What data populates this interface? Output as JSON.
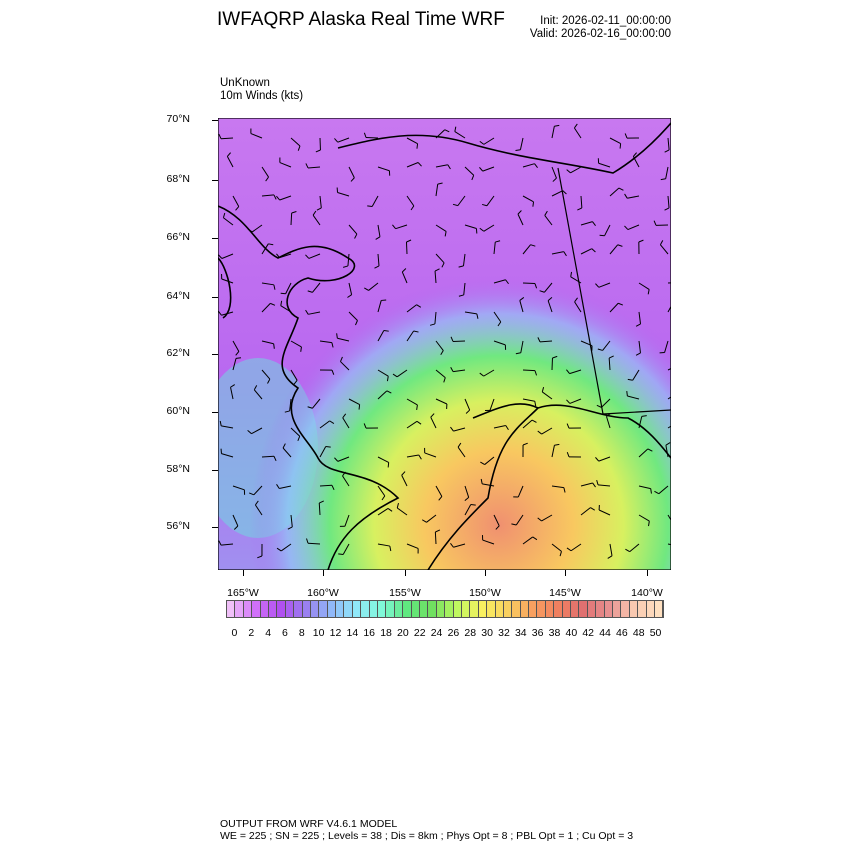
{
  "header": {
    "title": "IWFAQRP Alaska Real Time WRF",
    "init": "Init: 2026-02-11_00:00:00",
    "valid": "Valid: 2026-02-16_00:00:00"
  },
  "subtitle": {
    "line1": "UnKnown",
    "line2": "10m Winds   (kts)"
  },
  "map": {
    "lat_labels": [
      "70°N",
      "68°N",
      "66°N",
      "64°N",
      "62°N",
      "60°N",
      "58°N",
      "56°N"
    ],
    "lon_labels": [
      "165°W",
      "160°W",
      "155°W",
      "150°W",
      "145°W",
      "140°W"
    ],
    "field": "10m wind speed (kts)",
    "overlay": "wind barbs",
    "lat_range": [
      54.5,
      70
    ],
    "lon_range": [
      -166.5,
      -138.5
    ]
  },
  "colorbar": {
    "labels": [
      "0",
      "2",
      "4",
      "6",
      "8",
      "10",
      "12",
      "14",
      "16",
      "18",
      "20",
      "22",
      "24",
      "26",
      "28",
      "30",
      "32",
      "34",
      "36",
      "38",
      "40",
      "42",
      "44",
      "46",
      "48",
      "50"
    ],
    "stops": [
      "#f0c0f8",
      "#d070f8",
      "#b050f0",
      "#9a80f0",
      "#90b8f8",
      "#90e8f8",
      "#80f8d8",
      "#60e880",
      "#70e060",
      "#c0f860",
      "#f8f060",
      "#f8d060",
      "#f8a060",
      "#f08060",
      "#e07070",
      "#e89090",
      "#f8c8b0",
      "#ffe0c0"
    ]
  },
  "footer": {
    "line1": "OUTPUT FROM WRF V4.6.1 MODEL",
    "line2": "WE = 225 ; SN = 225 ; Levels = 38 ; Dis = 8km ; Phys Opt = 8 ; PBL Opt = 1 ; Cu Opt = 3"
  }
}
